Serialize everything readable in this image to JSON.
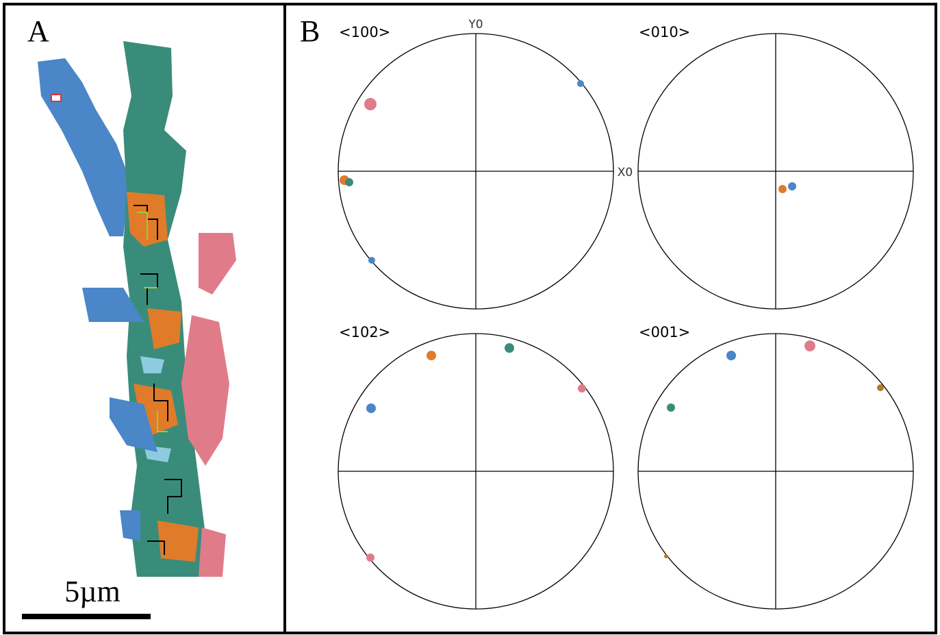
{
  "panel_a": {
    "label": "A",
    "scale_bar": "5µm"
  },
  "panel_b": {
    "label": "B",
    "y_axis_label": "Y0",
    "x_axis_label": "X0",
    "pole_figures": [
      {
        "title": "<100>"
      },
      {
        "title": "<010>"
      },
      {
        "title": "<102>"
      },
      {
        "title": "<001>"
      }
    ]
  }
}
